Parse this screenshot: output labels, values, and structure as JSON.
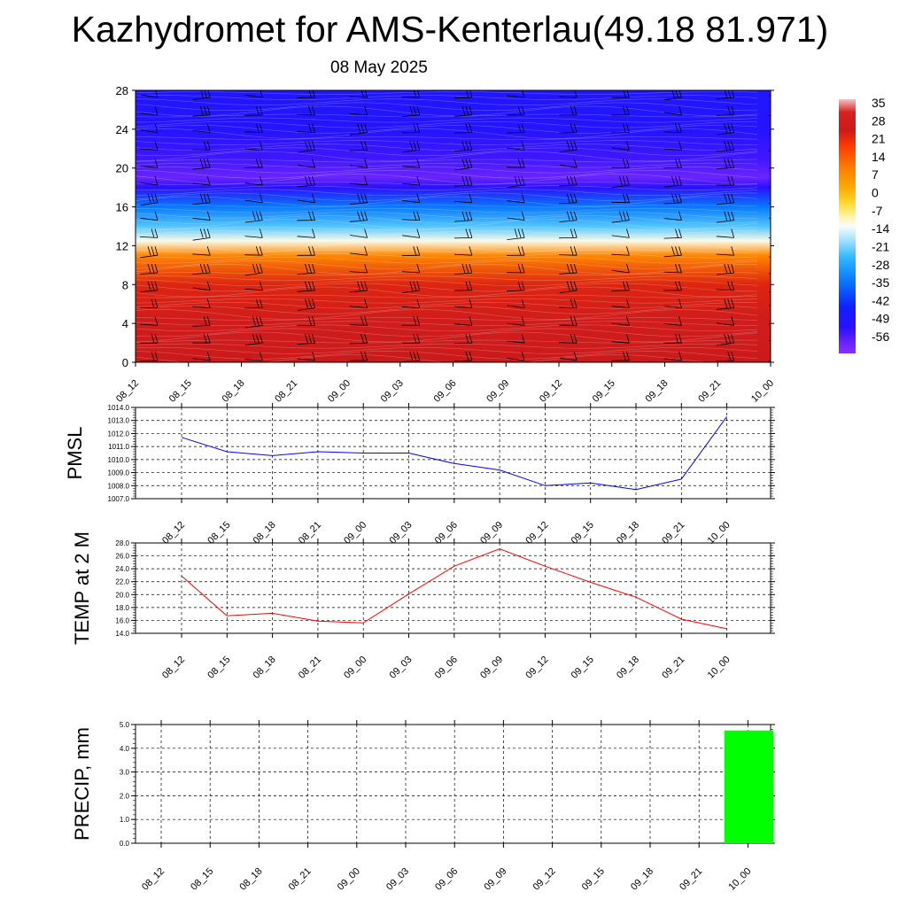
{
  "header": {
    "title": "Kazhydromet for AMS-Kenterlau(49.18 81.971)",
    "subtitle": "08 May 2025"
  },
  "chart_data": [
    {
      "type": "heatmap",
      "time_labels": [
        "08_12",
        "08_15",
        "08_18",
        "08_21",
        "09_00",
        "09_03",
        "09_06",
        "09_09",
        "09_12",
        "09_15",
        "09_18",
        "09_21",
        "10_00"
      ],
      "y_ticks": [
        0,
        4,
        8,
        12,
        16,
        20,
        24,
        28
      ],
      "ylim": [
        0,
        28
      ],
      "temperature_profile": [
        {
          "level": 0,
          "value": 26
        },
        {
          "level": 4,
          "value": 28
        },
        {
          "level": 8,
          "value": 24
        },
        {
          "level": 11,
          "value": 10
        },
        {
          "level": 12.5,
          "value": -10
        },
        {
          "level": 14,
          "value": -21
        },
        {
          "level": 16,
          "value": -32
        },
        {
          "level": 18,
          "value": -50
        },
        {
          "level": 19,
          "value": -56
        },
        {
          "level": 21,
          "value": -52
        },
        {
          "level": 24,
          "value": -48
        },
        {
          "level": 28,
          "value": -47
        }
      ],
      "colorbar": {
        "labels": [
          "35",
          "28",
          "21",
          "14",
          "7",
          "0",
          "-7",
          "-14",
          "-21",
          "-28",
          "-35",
          "-42",
          "-49",
          "-56"
        ],
        "range": [
          -60,
          38
        ],
        "stops": [
          {
            "value": 38,
            "color": "#f4c4c4"
          },
          {
            "value": 33,
            "color": "#d82020"
          },
          {
            "value": 26,
            "color": "#cc1a1a"
          },
          {
            "value": 20,
            "color": "#ff3a00"
          },
          {
            "value": 12,
            "color": "#ff7a00"
          },
          {
            "value": 4,
            "color": "#ffaa00"
          },
          {
            "value": -2,
            "color": "#ffd830"
          },
          {
            "value": -7,
            "color": "#fff4a0"
          },
          {
            "value": -11,
            "color": "#f8fcff"
          },
          {
            "value": -16,
            "color": "#a8e4ff"
          },
          {
            "value": -23,
            "color": "#30b8ff"
          },
          {
            "value": -32,
            "color": "#0878ff"
          },
          {
            "value": -42,
            "color": "#1020ff"
          },
          {
            "value": -50,
            "color": "#2a10ff"
          },
          {
            "value": -56,
            "color": "#6a24ff"
          },
          {
            "value": -60,
            "color": "#8a30ff"
          }
        ]
      },
      "wind_barbs": true
    },
    {
      "type": "line",
      "ylabel": "PMSL",
      "x": [
        "08_12",
        "08_15",
        "08_18",
        "08_21",
        "09_00",
        "09_03",
        "09_06",
        "09_09",
        "09_12",
        "09_15",
        "09_18",
        "09_21",
        "10_00"
      ],
      "y_ticks": [
        "1007.0",
        "1008.0",
        "1009.0",
        "1010.0",
        "1011.0",
        "1012.0",
        "1013.0",
        "1014.0"
      ],
      "ylim": [
        1007,
        1014
      ],
      "series": [
        {
          "values": [
            1011.7,
            1010.6,
            1010.3,
            1010.6,
            1010.5,
            1010.5,
            1009.7,
            1009.2,
            1008.0,
            1008.2,
            1007.7,
            1008.5,
            1013.3
          ],
          "color": "#0000ff"
        }
      ],
      "grid": true
    },
    {
      "type": "line",
      "ylabel": "TEMP at 2 M",
      "x": [
        "08_12",
        "08_15",
        "08_18",
        "08_21",
        "09_00",
        "09_03",
        "09_06",
        "09_09",
        "09_12",
        "09_15",
        "09_18",
        "09_21",
        "10_00"
      ],
      "y_ticks": [
        "14.0",
        "16.0",
        "18.0",
        "20.0",
        "22.0",
        "24.0",
        "26.0",
        "28.0"
      ],
      "ylim": [
        14,
        28
      ],
      "series": [
        {
          "values": [
            22.9,
            16.7,
            17.1,
            15.9,
            15.6,
            20.1,
            24.4,
            27.1,
            24.4,
            21.9,
            19.6,
            16.2,
            14.7
          ],
          "color": "#ff0000"
        }
      ],
      "grid": true
    },
    {
      "type": "bar",
      "ylabel": "PRECIP, mm",
      "categories": [
        "08_12",
        "08_15",
        "08_18",
        "08_21",
        "09_00",
        "09_03",
        "09_06",
        "09_09",
        "09_12",
        "09_15",
        "09_18",
        "09_21",
        "10_00"
      ],
      "values": [
        0,
        0,
        0,
        0,
        0,
        0,
        0,
        0,
        0,
        0,
        0,
        0,
        4.75
      ],
      "y_ticks": [
        "0.0",
        "1.0",
        "2.0",
        "3.0",
        "4.0",
        "5.0"
      ],
      "ylim": [
        0,
        5
      ],
      "color": "#00ff00",
      "grid": true
    }
  ]
}
